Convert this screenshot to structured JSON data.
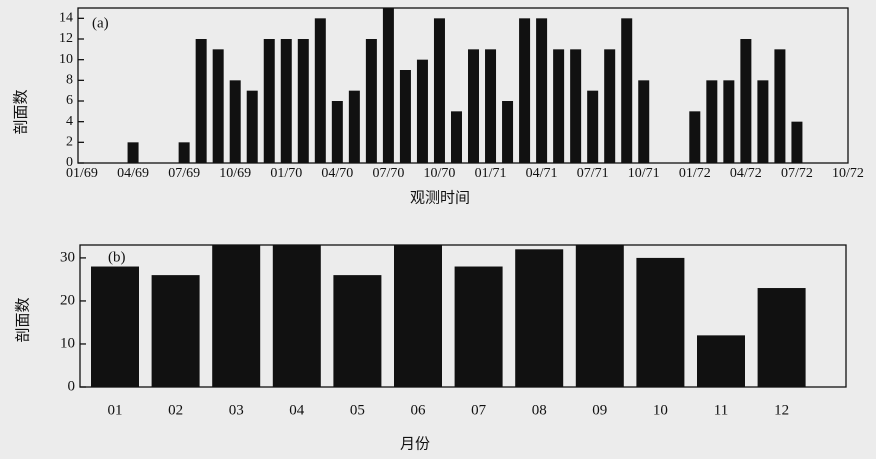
{
  "chart_data": [
    {
      "type": "bar",
      "annotation": "(a)",
      "x_label": "观测时间",
      "y_label": "剖面数",
      "color": "#111111",
      "categories": [
        "01/69",
        null,
        null,
        "04/69",
        null,
        null,
        "07/69",
        null,
        null,
        "10/69",
        null,
        null,
        "01/70",
        null,
        null,
        "04/70",
        null,
        null,
        "07/70",
        null,
        null,
        "10/70",
        null,
        null,
        "01/71",
        null,
        null,
        "04/71",
        null,
        null,
        "07/71",
        null,
        null,
        "10/71",
        null,
        null,
        "01/72",
        null,
        null,
        "04/72",
        null,
        null,
        "07/72",
        null,
        null,
        "10/72"
      ],
      "values": [
        0,
        0,
        0,
        2,
        0,
        0,
        2,
        12,
        11,
        8,
        7,
        12,
        12,
        12,
        14,
        6,
        7,
        12,
        15,
        9,
        10,
        14,
        5,
        11,
        11,
        6,
        14,
        14,
        11,
        11,
        7,
        11,
        14,
        8,
        0,
        0,
        5,
        8,
        8,
        12,
        8,
        11,
        4,
        0,
        0,
        0
      ],
      "ylim": [
        0,
        15
      ],
      "yticks": [
        0,
        2,
        4,
        6,
        8,
        10,
        12,
        14
      ]
    },
    {
      "type": "bar",
      "annotation": "(b)",
      "x_label": "月份",
      "y_label": "剖面数",
      "color": "#111111",
      "categories": [
        "01",
        "02",
        "03",
        "04",
        "05",
        "06",
        "07",
        "08",
        "09",
        "10",
        "11",
        "12"
      ],
      "values": [
        28,
        26,
        35,
        34,
        26,
        35,
        28,
        32,
        35,
        30,
        12,
        23
      ],
      "ylim": [
        0,
        33
      ],
      "yticks": [
        0,
        10,
        20,
        30
      ]
    }
  ]
}
